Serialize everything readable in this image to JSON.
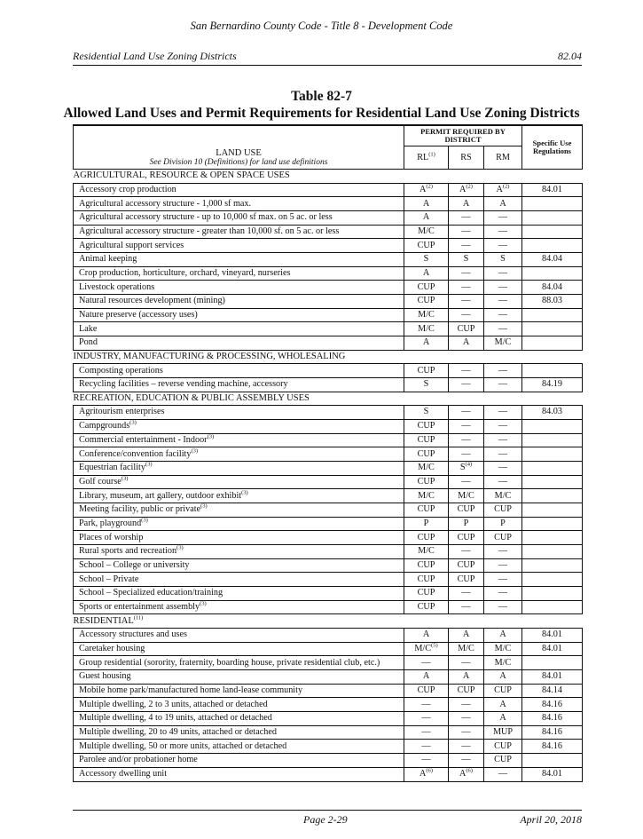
{
  "running_header": "San Bernardino County Code - Title 8 - Development Code",
  "section_title": "Residential Land Use Zoning Districts",
  "section_number": "82.04",
  "table_number": "Table 82-7",
  "table_title": "Allowed Land Uses and Permit Requirements for Residential Land Use Zoning Districts",
  "columns": {
    "land_use": "LAND USE",
    "land_use_note": "See Division 10 (Definitions) for land use definitions",
    "permit_group": "PERMIT REQUIRED BY DISTRICT",
    "districts": [
      {
        "label": "RL",
        "sup": "(1)"
      },
      {
        "label": "RS",
        "sup": ""
      },
      {
        "label": "RM",
        "sup": ""
      }
    ],
    "specific": "Specific Use Regulations"
  },
  "sections": [
    {
      "title": "AGRICULTURAL, RESOURCE & OPEN SPACE USES",
      "sup": "",
      "rows": [
        {
          "use": "Accessory crop production",
          "sup": "",
          "rl": "A",
          "rl_sup": "(2)",
          "rs": "A",
          "rs_sup": "(2)",
          "rm": "A",
          "rm_sup": "(2)",
          "spec": "84.01"
        },
        {
          "use": "Agricultural accessory structure - 1,000 sf max.",
          "sup": "",
          "rl": "A",
          "rl_sup": "",
          "rs": "A",
          "rs_sup": "",
          "rm": "A",
          "rm_sup": "",
          "spec": ""
        },
        {
          "use": "Agricultural accessory structure - up to 10,000 sf max. on 5 ac. or less",
          "sup": "",
          "rl": "A",
          "rl_sup": "",
          "rs": "—",
          "rs_sup": "",
          "rm": "—",
          "rm_sup": "",
          "spec": ""
        },
        {
          "use": "Agricultural accessory structure - greater than 10,000 sf. on 5 ac. or less",
          "sup": "",
          "rl": "M/C",
          "rl_sup": "",
          "rs": "—",
          "rs_sup": "",
          "rm": "—",
          "rm_sup": "",
          "spec": ""
        },
        {
          "use": "Agricultural support services",
          "sup": "",
          "rl": "CUP",
          "rl_sup": "",
          "rs": "—",
          "rs_sup": "",
          "rm": "—",
          "rm_sup": "",
          "spec": ""
        },
        {
          "use": "Animal keeping",
          "sup": "",
          "rl": "S",
          "rl_sup": "",
          "rs": "S",
          "rs_sup": "",
          "rm": "S",
          "rm_sup": "",
          "spec": "84.04"
        },
        {
          "use": "Crop production, horticulture, orchard, vineyard, nurseries",
          "sup": "",
          "rl": "A",
          "rl_sup": "",
          "rs": "—",
          "rs_sup": "",
          "rm": "—",
          "rm_sup": "",
          "spec": ""
        },
        {
          "use": "Livestock operations",
          "sup": "",
          "rl": "CUP",
          "rl_sup": "",
          "rs": "—",
          "rs_sup": "",
          "rm": "—",
          "rm_sup": "",
          "spec": "84.04"
        },
        {
          "use": "Natural resources development (mining)",
          "sup": "",
          "rl": "CUP",
          "rl_sup": "",
          "rs": "—",
          "rs_sup": "",
          "rm": "—",
          "rm_sup": "",
          "spec": "88.03"
        },
        {
          "use": "Nature preserve (accessory uses)",
          "sup": "",
          "rl": "M/C",
          "rl_sup": "",
          "rs": "—",
          "rs_sup": "",
          "rm": "—",
          "rm_sup": "",
          "spec": ""
        },
        {
          "use": "Lake",
          "sup": "",
          "rl": "M/C",
          "rl_sup": "",
          "rs": "CUP",
          "rs_sup": "",
          "rm": "—",
          "rm_sup": "",
          "spec": ""
        },
        {
          "use": "Pond",
          "sup": "",
          "rl": "A",
          "rl_sup": "",
          "rs": "A",
          "rs_sup": "",
          "rm": "M/C",
          "rm_sup": "",
          "spec": ""
        }
      ]
    },
    {
      "title": "INDUSTRY, MANUFACTURING & PROCESSING, WHOLESALING",
      "sup": "",
      "rows": [
        {
          "use": "Composting operations",
          "sup": "",
          "rl": "CUP",
          "rl_sup": "",
          "rs": "—",
          "rs_sup": "",
          "rm": "—",
          "rm_sup": "",
          "spec": ""
        },
        {
          "use": "Recycling facilities – reverse vending machine, accessory",
          "sup": "",
          "rl": "S",
          "rl_sup": "",
          "rs": "—",
          "rs_sup": "",
          "rm": "—",
          "rm_sup": "",
          "spec": "84.19"
        }
      ]
    },
    {
      "title": "RECREATION, EDUCATION & PUBLIC ASSEMBLY USES",
      "sup": "",
      "rows": [
        {
          "use": "Agritourism enterprises",
          "sup": "",
          "rl": "S",
          "rl_sup": "",
          "rs": "—",
          "rs_sup": "",
          "rm": "—",
          "rm_sup": "",
          "spec": "84.03"
        },
        {
          "use": "Campgrounds",
          "sup": "(3)",
          "rl": "CUP",
          "rl_sup": "",
          "rs": "—",
          "rs_sup": "",
          "rm": "—",
          "rm_sup": "",
          "spec": ""
        },
        {
          "use": "Commercial entertainment - Indoor",
          "sup": "(3)",
          "rl": "CUP",
          "rl_sup": "",
          "rs": "—",
          "rs_sup": "",
          "rm": "—",
          "rm_sup": "",
          "spec": ""
        },
        {
          "use": "Conference/convention facility",
          "sup": "(3)",
          "rl": "CUP",
          "rl_sup": "",
          "rs": "—",
          "rs_sup": "",
          "rm": "—",
          "rm_sup": "",
          "spec": ""
        },
        {
          "use": "Equestrian facility",
          "sup": "(3)",
          "rl": "M/C",
          "rl_sup": "",
          "rs": "S",
          "rs_sup": "(4)",
          "rm": "—",
          "rm_sup": "",
          "spec": ""
        },
        {
          "use": "Golf course",
          "sup": "(3)",
          "rl": "CUP",
          "rl_sup": "",
          "rs": "—",
          "rs_sup": "",
          "rm": "—",
          "rm_sup": "",
          "spec": ""
        },
        {
          "use": "Library, museum, art gallery, outdoor exhibit",
          "sup": "(3)",
          "rl": "M/C",
          "rl_sup": "",
          "rs": "M/C",
          "rs_sup": "",
          "rm": "M/C",
          "rm_sup": "",
          "spec": ""
        },
        {
          "use": "Meeting facility, public or private",
          "sup": "(3)",
          "rl": "CUP",
          "rl_sup": "",
          "rs": "CUP",
          "rs_sup": "",
          "rm": "CUP",
          "rm_sup": "",
          "spec": ""
        },
        {
          "use": "Park, playground",
          "sup": "(3)",
          "rl": "P",
          "rl_sup": "",
          "rs": "P",
          "rs_sup": "",
          "rm": "P",
          "rm_sup": "",
          "spec": ""
        },
        {
          "use": "Places of worship",
          "sup": "",
          "rl": "CUP",
          "rl_sup": "",
          "rs": "CUP",
          "rs_sup": "",
          "rm": "CUP",
          "rm_sup": "",
          "spec": ""
        },
        {
          "use": "Rural sports and recreation",
          "sup": "(3)",
          "rl": "M/C",
          "rl_sup": "",
          "rs": "—",
          "rs_sup": "",
          "rm": "—",
          "rm_sup": "",
          "spec": ""
        },
        {
          "use": "School – College or university",
          "sup": "",
          "rl": "CUP",
          "rl_sup": "",
          "rs": "CUP",
          "rs_sup": "",
          "rm": "—",
          "rm_sup": "",
          "spec": ""
        },
        {
          "use": "School – Private",
          "sup": "",
          "rl": "CUP",
          "rl_sup": "",
          "rs": "CUP",
          "rs_sup": "",
          "rm": "—",
          "rm_sup": "",
          "spec": ""
        },
        {
          "use": "School – Specialized education/training",
          "sup": "",
          "rl": "CUP",
          "rl_sup": "",
          "rs": "—",
          "rs_sup": "",
          "rm": "—",
          "rm_sup": "",
          "spec": ""
        },
        {
          "use": "Sports or entertainment assembly",
          "sup": "(3)",
          "rl": "CUP",
          "rl_sup": "",
          "rs": "—",
          "rs_sup": "",
          "rm": "—",
          "rm_sup": "",
          "spec": ""
        }
      ]
    },
    {
      "title": "RESIDENTIAL",
      "sup": "(11)",
      "rows": [
        {
          "use": "Accessory structures and uses",
          "sup": "",
          "rl": "A",
          "rl_sup": "",
          "rs": "A",
          "rs_sup": "",
          "rm": "A",
          "rm_sup": "",
          "spec": "84.01"
        },
        {
          "use": "Caretaker housing",
          "sup": "",
          "rl": "M/C",
          "rl_sup": "(5)",
          "rs": "M/C",
          "rs_sup": "",
          "rm": "M/C",
          "rm_sup": "",
          "spec": "84.01"
        },
        {
          "use": "Group residential (sorority, fraternity, boarding house, private residential club, etc.)",
          "sup": "",
          "rl": "—",
          "rl_sup": "",
          "rs": "—",
          "rs_sup": "",
          "rm": "M/C",
          "rm_sup": "",
          "spec": ""
        },
        {
          "use": "Guest housing",
          "sup": "",
          "rl": "A",
          "rl_sup": "",
          "rs": "A",
          "rs_sup": "",
          "rm": "A",
          "rm_sup": "",
          "spec": "84.01"
        },
        {
          "use": "Mobile home park/manufactured home land-lease community",
          "sup": "",
          "rl": "CUP",
          "rl_sup": "",
          "rs": "CUP",
          "rs_sup": "",
          "rm": "CUP",
          "rm_sup": "",
          "spec": "84.14"
        },
        {
          "use": "Multiple dwelling, 2 to 3 units, attached or detached",
          "sup": "",
          "rl": "—",
          "rl_sup": "",
          "rs": "—",
          "rs_sup": "",
          "rm": "A",
          "rm_sup": "",
          "spec": "84.16"
        },
        {
          "use": "Multiple dwelling, 4 to 19 units, attached or detached",
          "sup": "",
          "rl": "—",
          "rl_sup": "",
          "rs": "—",
          "rs_sup": "",
          "rm": "A",
          "rm_sup": "",
          "spec": "84.16"
        },
        {
          "use": "Multiple dwelling, 20 to 49 units, attached or detached",
          "sup": "",
          "rl": "—",
          "rl_sup": "",
          "rs": "—",
          "rs_sup": "",
          "rm": "MUP",
          "rm_sup": "",
          "spec": "84.16"
        },
        {
          "use": "Multiple dwelling, 50 or more units, attached or detached",
          "sup": "",
          "rl": "—",
          "rl_sup": "",
          "rs": "—",
          "rs_sup": "",
          "rm": "CUP",
          "rm_sup": "",
          "spec": "84.16"
        },
        {
          "use": "Parolee and/or probationer home",
          "sup": "",
          "rl": "—",
          "rl_sup": "",
          "rs": "—",
          "rs_sup": "",
          "rm": "CUP",
          "rm_sup": "",
          "spec": ""
        },
        {
          "use": "Accessory dwelling unit",
          "sup": "",
          "rl": "A",
          "rl_sup": "(6)",
          "rs": "A",
          "rs_sup": "(6)",
          "rm": "—",
          "rm_sup": "",
          "spec": "84.01"
        }
      ]
    }
  ],
  "footer": {
    "page": "Page 2-29",
    "date": "April 20, 2018"
  }
}
